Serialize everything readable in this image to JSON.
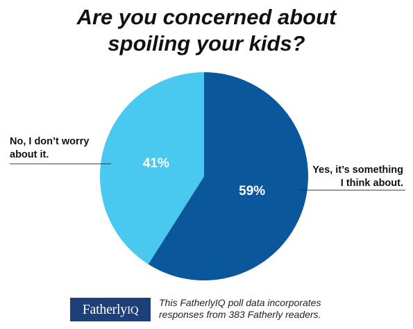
{
  "chart_data": {
    "type": "pie",
    "title_lines": [
      "Are you concerned about",
      "spoiling your kids?"
    ],
    "slices": [
      {
        "label_lines": [
          "Yes, it’s something",
          "I think about."
        ],
        "value": 59,
        "value_label": "59%",
        "color": "#0b579c"
      },
      {
        "label_lines": [
          "No, I don’t worry",
          "about it."
        ],
        "value": 41,
        "value_label": "41%",
        "color": "#49c8f0"
      }
    ]
  },
  "footer": {
    "logo_main": "Fatherly",
    "logo_suffix": "IQ",
    "note_lines": [
      "This FatherlyIQ poll data incorporates",
      "responses from 383 Fatherly readers."
    ]
  }
}
